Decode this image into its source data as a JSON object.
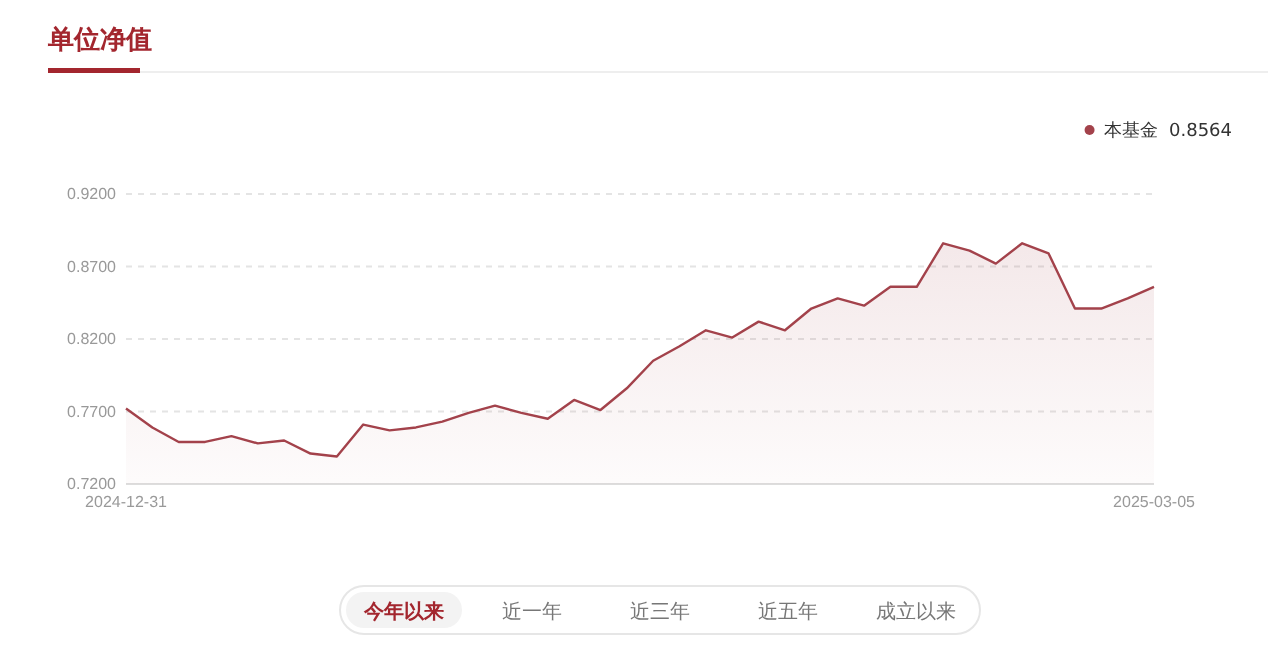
{
  "chart_data": {
    "type": "area",
    "title": "单位净值",
    "categories": [
      "2024-12-31",
      null,
      null,
      null,
      null,
      null,
      null,
      null,
      null,
      null,
      null,
      null,
      null,
      null,
      null,
      null,
      null,
      null,
      null,
      null,
      null,
      null,
      null,
      null,
      null,
      null,
      null,
      null,
      null,
      null,
      null,
      null,
      null,
      null,
      null,
      null,
      null,
      null,
      null,
      "2025-03-05"
    ],
    "series": [
      {
        "name": "本基金  0.8564",
        "color": "#a3424b",
        "values": [
          0.772,
          0.759,
          0.749,
          0.749,
          0.753,
          0.748,
          0.75,
          0.741,
          0.739,
          0.761,
          0.757,
          0.759,
          0.763,
          0.769,
          0.774,
          0.769,
          0.765,
          0.778,
          0.771,
          0.786,
          0.805,
          0.815,
          0.826,
          0.821,
          0.832,
          0.826,
          0.841,
          0.848,
          0.843,
          0.856,
          0.856,
          0.886,
          0.881,
          0.872,
          0.886,
          0.879,
          0.841,
          0.841,
          0.848,
          0.856
        ]
      }
    ],
    "ylim": [
      0.72,
      0.92
    ],
    "yticks": [
      {
        "value": 0.72,
        "label": "0.7200"
      },
      {
        "value": 0.77,
        "label": "0.7700"
      },
      {
        "value": 0.82,
        "label": "0.8200"
      },
      {
        "value": 0.87,
        "label": "0.8700"
      },
      {
        "value": 0.92,
        "label": "0.9200"
      }
    ],
    "grid": "y",
    "legend": "top right",
    "annotations": [
      "今年以来",
      "近一年",
      "近三年",
      "近五年",
      "成立以来"
    ]
  }
}
